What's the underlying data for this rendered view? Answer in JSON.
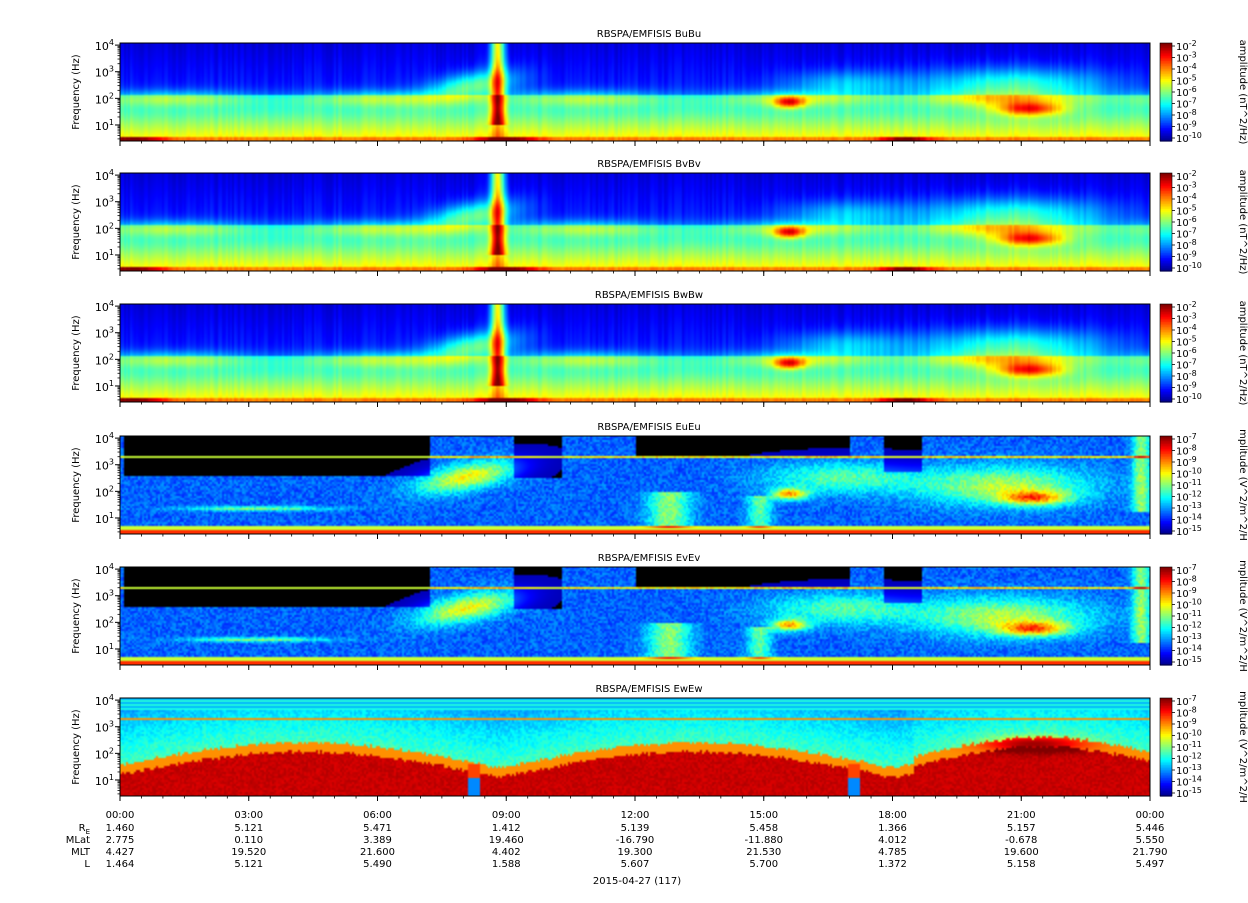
{
  "figure": {
    "date_label": "2015-04-27 (117)",
    "ephemeris_labels": [
      "RE",
      "MLat",
      "MLT",
      "L"
    ],
    "ephemeris_label_display": {
      "re_main": "R",
      "re_sub": "E"
    }
  },
  "chart_data": [
    {
      "type": "heatmap",
      "title": "RBSPA/EMFISIS  BuBu",
      "ylabel": "Frequency (Hz)",
      "yscale": "log",
      "ylim": [
        2.5,
        12000
      ],
      "yticks": [
        {
          "exp": "1",
          "value": 10
        },
        {
          "exp": "2",
          "value": 100
        },
        {
          "exp": "3",
          "value": 1000
        },
        {
          "exp": "4",
          "value": 10000
        }
      ],
      "colorbar": {
        "label": "amplitude (nT^2/Hz)",
        "exponents": [
          "-2",
          "-3",
          "-4",
          "-5",
          "-6",
          "-7",
          "-8",
          "-9",
          "-10"
        ],
        "range_exp": [
          -10,
          -2
        ]
      },
      "features": {
        "band": "magnetic",
        "notch": false
      }
    },
    {
      "type": "heatmap",
      "title": "RBSPA/EMFISIS  BvBv",
      "ylabel": "Frequency (Hz)",
      "yscale": "log",
      "ylim": [
        2.5,
        12000
      ],
      "yticks": [
        {
          "exp": "1",
          "value": 10
        },
        {
          "exp": "2",
          "value": 100
        },
        {
          "exp": "3",
          "value": 1000
        },
        {
          "exp": "4",
          "value": 10000
        }
      ],
      "colorbar": {
        "label": "amplitude (nT^2/Hz)",
        "exponents": [
          "-2",
          "-3",
          "-4",
          "-5",
          "-6",
          "-7",
          "-8",
          "-9",
          "-10"
        ],
        "range_exp": [
          -10,
          -2
        ]
      },
      "features": {
        "band": "magnetic",
        "notch": false
      }
    },
    {
      "type": "heatmap",
      "title": "RBSPA/EMFISIS  BwBw",
      "ylabel": "Frequency (Hz)",
      "yscale": "log",
      "ylim": [
        2.5,
        12000
      ],
      "yticks": [
        {
          "exp": "1",
          "value": 10
        },
        {
          "exp": "2",
          "value": 100
        },
        {
          "exp": "3",
          "value": 1000
        },
        {
          "exp": "4",
          "value": 10000
        }
      ],
      "colorbar": {
        "label": "amplitude (nT^2/Hz)",
        "exponents": [
          "-2",
          "-3",
          "-4",
          "-5",
          "-6",
          "-7",
          "-8",
          "-9",
          "-10"
        ],
        "range_exp": [
          -10,
          -2
        ]
      },
      "features": {
        "band": "magnetic",
        "notch": false
      }
    },
    {
      "type": "heatmap",
      "title": "RBSPA/EMFISIS  EuEu",
      "ylabel": "Frequency (Hz)",
      "yscale": "log",
      "ylim": [
        2.5,
        12000
      ],
      "yticks": [
        {
          "exp": "1",
          "value": 10
        },
        {
          "exp": "2",
          "value": 100
        },
        {
          "exp": "3",
          "value": 1000
        },
        {
          "exp": "4",
          "value": 10000
        }
      ],
      "colorbar": {
        "label": "mplitude (V^2/m^2/H",
        "exponents": [
          "-7",
          "-8",
          "-9",
          "-10",
          "-11",
          "-12",
          "-13",
          "-14",
          "-15"
        ],
        "range_exp": [
          -15,
          -7
        ]
      },
      "features": {
        "band": "electric",
        "notch": false
      }
    },
    {
      "type": "heatmap",
      "title": "RBSPA/EMFISIS  EvEv",
      "ylabel": "Frequency (Hz)",
      "yscale": "log",
      "ylim": [
        2.5,
        12000
      ],
      "yticks": [
        {
          "exp": "1",
          "value": 10
        },
        {
          "exp": "2",
          "value": 100
        },
        {
          "exp": "3",
          "value": 1000
        },
        {
          "exp": "4",
          "value": 10000
        }
      ],
      "colorbar": {
        "label": "mplitude (V^2/m^2/H",
        "exponents": [
          "-7",
          "-8",
          "-9",
          "-10",
          "-11",
          "-12",
          "-13",
          "-14",
          "-15"
        ],
        "range_exp": [
          -15,
          -7
        ]
      },
      "features": {
        "band": "electric",
        "notch": false
      }
    },
    {
      "type": "heatmap",
      "title": "RBSPA/EMFISIS  EwEw",
      "ylabel": "Frequency (Hz)",
      "yscale": "log",
      "ylim": [
        2.5,
        12000
      ],
      "yticks": [
        {
          "exp": "1",
          "value": 10
        },
        {
          "exp": "2",
          "value": 100
        },
        {
          "exp": "3",
          "value": 1000
        },
        {
          "exp": "4",
          "value": 10000
        }
      ],
      "colorbar": {
        "label": "mplitude (V^2/m^2/H",
        "exponents": [
          "-7",
          "-8",
          "-9",
          "-10",
          "-11",
          "-12",
          "-13",
          "-14",
          "-15"
        ],
        "range_exp": [
          -15,
          -7
        ]
      },
      "features": {
        "band": "electric_w",
        "notch": true
      }
    }
  ],
  "x_axis": {
    "time_range_hours": [
      0,
      24
    ],
    "ticks": [
      {
        "hour": 0,
        "label": "00:00",
        "RE": "1.460",
        "MLat": "2.775",
        "MLT": "4.427",
        "L": "1.464"
      },
      {
        "hour": 3,
        "label": "03:00",
        "RE": "5.121",
        "MLat": "0.110",
        "MLT": "19.520",
        "L": "5.121"
      },
      {
        "hour": 6,
        "label": "06:00",
        "RE": "5.471",
        "MLat": "3.389",
        "MLT": "21.600",
        "L": "5.490"
      },
      {
        "hour": 9,
        "label": "09:00",
        "RE": "1.412",
        "MLat": "19.460",
        "MLT": "4.402",
        "L": "1.588"
      },
      {
        "hour": 12,
        "label": "12:00",
        "RE": "5.139",
        "MLat": "-16.790",
        "MLT": "19.300",
        "L": "5.607"
      },
      {
        "hour": 15,
        "label": "15:00",
        "RE": "5.458",
        "MLat": "-11.880",
        "MLT": "21.530",
        "L": "5.700"
      },
      {
        "hour": 18,
        "label": "18:00",
        "RE": "1.366",
        "MLat": "4.012",
        "MLT": "4.785",
        "L": "1.372"
      },
      {
        "hour": 21,
        "label": "21:00",
        "RE": "5.157",
        "MLat": "-0.678",
        "MLT": "19.600",
        "L": "5.158"
      },
      {
        "hour": 24,
        "label": "00:00",
        "RE": "5.446",
        "MLat": "5.550",
        "MLT": "21.790",
        "L": "5.497"
      }
    ],
    "minor_tick_hours": 0.5
  }
}
